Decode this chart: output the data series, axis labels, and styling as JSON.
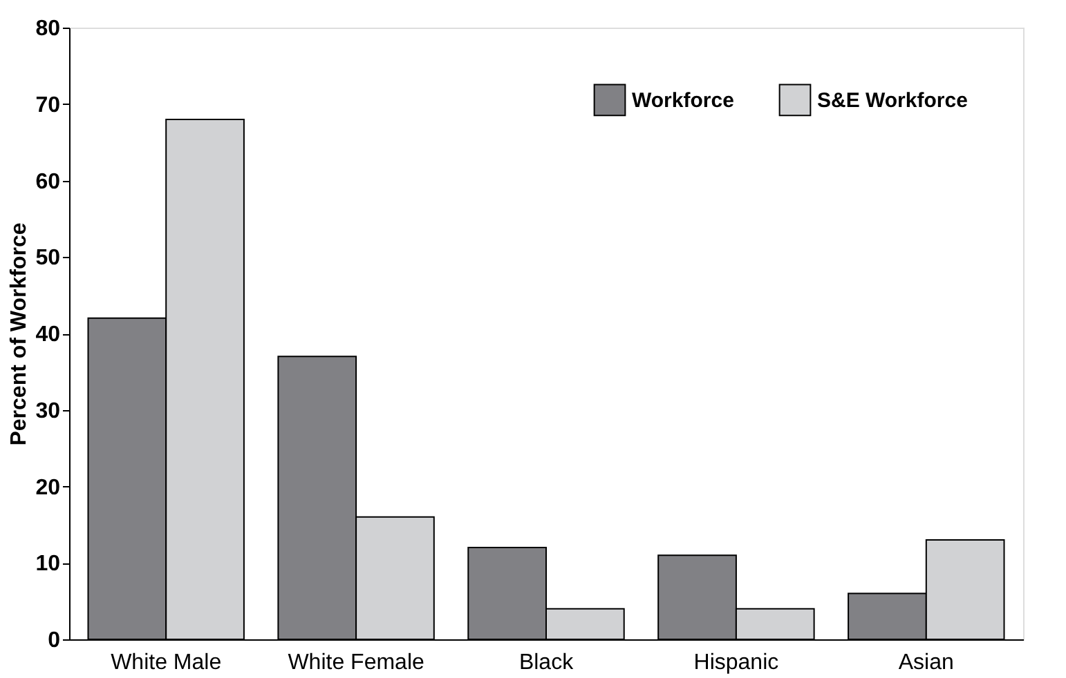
{
  "chart_data": {
    "type": "bar",
    "ylabel": "Percent of Workforce",
    "categories": [
      "White Male",
      "White Female",
      "Black",
      "Hispanic",
      "Asian"
    ],
    "series": [
      {
        "name": "Workforce",
        "color": "#818185",
        "values": [
          42,
          37,
          12,
          11,
          6
        ]
      },
      {
        "name": "S&E Workforce",
        "color": "#d1d2d4",
        "values": [
          68,
          16,
          4,
          4,
          13
        ]
      }
    ],
    "ylim": [
      0,
      80
    ],
    "yticks": [
      0,
      10,
      20,
      30,
      40,
      50,
      60,
      70,
      80
    ],
    "grid": false,
    "legend": "top right"
  }
}
